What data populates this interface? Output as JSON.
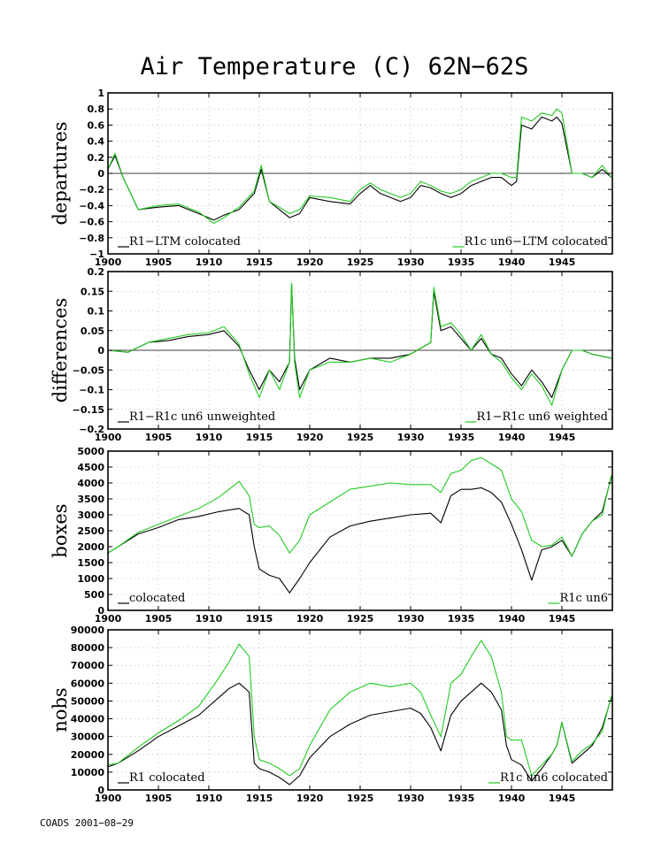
{
  "title": "Air Temperature (C) 62N−62S",
  "footer": "COADS 2001−08−29",
  "colors": {
    "series1": "#000000",
    "series2": "#22cc22",
    "grid": "#9a9a9a",
    "zero_line": "#000000"
  },
  "chart_data": [
    {
      "type": "line",
      "ylabel": "departures",
      "ylim": [
        -1,
        1
      ],
      "yticks": [
        -1,
        -0.8,
        -0.6,
        -0.4,
        -0.2,
        0,
        0.2,
        0.4,
        0.6,
        0.8,
        1
      ],
      "ytick_labels": [
        "−1",
        "−0.8",
        "−0.6",
        "−0.4",
        "−0.2",
        "0",
        "0.2",
        "0.4",
        "0.6",
        "0.8",
        "1"
      ],
      "xlim": [
        1900,
        1950
      ],
      "xticks": [
        1900,
        1905,
        1910,
        1915,
        1920,
        1925,
        1930,
        1935,
        1940,
        1945
      ],
      "zero_line": true,
      "grid": true,
      "x": [
        1900,
        1900.7,
        1901.5,
        1903,
        1905,
        1907,
        1909,
        1910.5,
        1911.5,
        1913,
        1914.5,
        1915.2,
        1916,
        1917,
        1918,
        1919,
        1920,
        1922,
        1924,
        1925,
        1926,
        1927,
        1928,
        1929,
        1930,
        1931,
        1932,
        1933,
        1934,
        1935,
        1936,
        1937,
        1938,
        1939,
        1940,
        1940.5,
        1941,
        1942,
        1943,
        1944,
        1944.5,
        1945,
        1946,
        1947,
        1948,
        1949,
        1949.9
      ],
      "series": [
        {
          "name": "R1−LTM colocated",
          "values": [
            0.05,
            0.22,
            -0.05,
            -0.45,
            -0.42,
            -0.4,
            -0.5,
            -0.58,
            -0.52,
            -0.45,
            -0.25,
            0.05,
            -0.35,
            -0.45,
            -0.55,
            -0.5,
            -0.3,
            -0.35,
            -0.38,
            -0.25,
            -0.15,
            -0.25,
            -0.3,
            -0.35,
            -0.3,
            -0.15,
            -0.18,
            -0.25,
            -0.3,
            -0.25,
            -0.15,
            -0.1,
            -0.05,
            -0.05,
            -0.15,
            -0.1,
            0.6,
            0.55,
            0.7,
            0.65,
            0.7,
            0.62,
            0,
            0,
            -0.05,
            0.05,
            -0.05
          ]
        },
        {
          "name": "R1c un6−LTM colocated",
          "values": [
            0.05,
            0.25,
            -0.05,
            -0.45,
            -0.4,
            -0.38,
            -0.48,
            -0.62,
            -0.55,
            -0.42,
            -0.22,
            0.1,
            -0.35,
            -0.42,
            -0.5,
            -0.45,
            -0.28,
            -0.3,
            -0.35,
            -0.2,
            -0.12,
            -0.2,
            -0.25,
            -0.3,
            -0.25,
            -0.1,
            -0.15,
            -0.22,
            -0.25,
            -0.2,
            -0.1,
            -0.05,
            0,
            0,
            -0.05,
            -0.05,
            0.7,
            0.65,
            0.75,
            0.72,
            0.8,
            0.75,
            0,
            0,
            -0.05,
            0.1,
            -0.05
          ]
        }
      ],
      "legend": [
        "R1−LTM colocated",
        "R1c un6−LTM colocated"
      ]
    },
    {
      "type": "line",
      "ylabel": "differences",
      "ylim": [
        -0.2,
        0.2
      ],
      "yticks": [
        -0.2,
        -0.15,
        -0.1,
        -0.05,
        0,
        0.05,
        0.1,
        0.15,
        0.2
      ],
      "ytick_labels": [
        "−0.2",
        "−0.15",
        "−0.1",
        "−0.05",
        "0",
        "0.05",
        "0.1",
        "0.15",
        "0.2"
      ],
      "xlim": [
        1900,
        1950
      ],
      "xticks": [
        1900,
        1905,
        1910,
        1915,
        1920,
        1925,
        1930,
        1935,
        1940,
        1945
      ],
      "zero_line": true,
      "grid": true,
      "x": [
        1900,
        1902,
        1904,
        1906,
        1908,
        1910,
        1911.5,
        1913,
        1914,
        1915,
        1916,
        1917,
        1918,
        1918.2,
        1918.5,
        1919,
        1920,
        1922,
        1924,
        1926,
        1928,
        1930,
        1932,
        1932.3,
        1933,
        1934,
        1935,
        1936,
        1937,
        1938,
        1939,
        1940,
        1941,
        1942,
        1943,
        1944,
        1945,
        1946,
        1947,
        1948,
        1949.9
      ],
      "series": [
        {
          "name": "R1−R1c un6 unweighted",
          "values": [
            0,
            -0.005,
            0.02,
            0.025,
            0.035,
            0.04,
            0.05,
            0.01,
            -0.05,
            -0.1,
            -0.05,
            -0.08,
            -0.03,
            0.17,
            -0.02,
            -0.1,
            -0.05,
            -0.02,
            -0.03,
            -0.02,
            -0.02,
            -0.01,
            0.02,
            0.15,
            0.05,
            0.06,
            0.03,
            0,
            0.03,
            -0.01,
            -0.02,
            -0.06,
            -0.09,
            -0.05,
            -0.08,
            -0.12,
            -0.05,
            0,
            0,
            -0.01,
            -0.02
          ]
        },
        {
          "name": "R1−R1c un6 weighted",
          "values": [
            0,
            -0.005,
            0.02,
            0.03,
            0.04,
            0.045,
            0.06,
            0.015,
            -0.06,
            -0.12,
            -0.05,
            -0.1,
            -0.03,
            0.17,
            -0.03,
            -0.12,
            -0.05,
            -0.03,
            -0.03,
            -0.02,
            -0.03,
            -0.01,
            0.02,
            0.16,
            0.06,
            0.07,
            0.04,
            0,
            0.04,
            -0.01,
            -0.03,
            -0.07,
            -0.1,
            -0.06,
            -0.09,
            -0.14,
            -0.05,
            0,
            0,
            -0.01,
            -0.02
          ]
        }
      ],
      "legend": [
        "R1−R1c un6 unweighted",
        "R1−R1c un6 weighted"
      ]
    },
    {
      "type": "line",
      "ylabel": "boxes",
      "ylim": [
        0,
        5000
      ],
      "yticks": [
        0,
        500,
        1000,
        1500,
        2000,
        2500,
        3000,
        3500,
        4000,
        4500,
        5000
      ],
      "ytick_labels": [
        "0",
        "500",
        "1000",
        "1500",
        "2000",
        "2500",
        "3000",
        "3500",
        "4000",
        "4500",
        "5000"
      ],
      "xlim": [
        1900,
        1950
      ],
      "xticks": [
        1900,
        1905,
        1910,
        1915,
        1920,
        1925,
        1930,
        1935,
        1940,
        1945
      ],
      "zero_line": false,
      "grid": true,
      "x": [
        1900,
        1901,
        1903,
        1905,
        1907,
        1909,
        1911,
        1913,
        1914,
        1914.5,
        1915,
        1916,
        1917,
        1918,
        1919,
        1920,
        1922,
        1924,
        1926,
        1928,
        1930,
        1932,
        1933,
        1934,
        1935,
        1936,
        1937,
        1938,
        1939,
        1940,
        1941,
        1942,
        1943,
        1944,
        1945,
        1946,
        1947,
        1948,
        1949,
        1949.9
      ],
      "series": [
        {
          "name": "colocated",
          "values": [
            1800,
            2000,
            2400,
            2600,
            2850,
            2950,
            3100,
            3200,
            3000,
            2000,
            1300,
            1100,
            1000,
            550,
            1000,
            1500,
            2300,
            2650,
            2800,
            2900,
            3000,
            3050,
            2750,
            3600,
            3800,
            3800,
            3850,
            3700,
            3400,
            2700,
            1900,
            950,
            1900,
            2000,
            2200,
            1700,
            2400,
            2800,
            3100,
            4200
          ]
        },
        {
          "name": "R1c un6",
          "values": [
            1800,
            2000,
            2450,
            2700,
            2950,
            3200,
            3550,
            4050,
            3600,
            2700,
            2600,
            2650,
            2350,
            1800,
            2200,
            3000,
            3400,
            3800,
            3900,
            4000,
            3950,
            3950,
            3700,
            4300,
            4400,
            4700,
            4800,
            4600,
            4400,
            3500,
            3100,
            2200,
            2000,
            2050,
            2300,
            1700,
            2400,
            2800,
            3000,
            4250
          ]
        }
      ],
      "legend": [
        "colocated",
        "R1c un6"
      ]
    },
    {
      "type": "line",
      "ylabel": "nobs",
      "ylim": [
        0,
        90000
      ],
      "yticks": [
        0,
        10000,
        20000,
        30000,
        40000,
        50000,
        60000,
        70000,
        80000,
        90000
      ],
      "ytick_labels": [
        "0",
        "10000",
        "20000",
        "30000",
        "40000",
        "50000",
        "60000",
        "70000",
        "80000",
        "90000"
      ],
      "xlim": [
        1900,
        1950
      ],
      "xticks": [
        1900,
        1905,
        1910,
        1915,
        1920,
        1925,
        1930,
        1935,
        1940,
        1945
      ],
      "zero_line": false,
      "grid": true,
      "x": [
        1900,
        1901,
        1903,
        1905,
        1907,
        1909,
        1911,
        1912,
        1913,
        1914,
        1914.5,
        1915,
        1916,
        1917,
        1918,
        1919,
        1920,
        1922,
        1924,
        1926,
        1928,
        1930,
        1931,
        1932,
        1933,
        1934,
        1935,
        1936,
        1937,
        1938,
        1939,
        1939.5,
        1940,
        1941,
        1942,
        1943,
        1944,
        1944.5,
        1945,
        1946,
        1947,
        1948,
        1949,
        1949.9
      ],
      "series": [
        {
          "name": "R1 colocated",
          "values": [
            13000,
            15000,
            22000,
            30000,
            36000,
            42000,
            52000,
            57000,
            60000,
            55000,
            15000,
            12000,
            10000,
            7000,
            3000,
            8000,
            18000,
            30000,
            37000,
            42000,
            44000,
            46000,
            43000,
            35000,
            22000,
            42000,
            50000,
            55000,
            60000,
            55000,
            45000,
            25000,
            17000,
            14000,
            5000,
            12000,
            20000,
            25000,
            38000,
            15000,
            20000,
            25000,
            35000,
            52000
          ]
        },
        {
          "name": "R1c un6 colocated",
          "values": [
            14000,
            15000,
            24000,
            32000,
            39000,
            47000,
            63000,
            72000,
            82000,
            75000,
            30000,
            17000,
            15000,
            12000,
            8000,
            12000,
            25000,
            45000,
            55000,
            60000,
            58000,
            60000,
            55000,
            42000,
            30000,
            60000,
            65000,
            75000,
            84000,
            75000,
            55000,
            30000,
            28000,
            28000,
            8000,
            14000,
            20000,
            25000,
            38000,
            16000,
            22000,
            26000,
            33000,
            53000
          ]
        }
      ],
      "legend": [
        "R1 colocated",
        "R1c un6 colocated"
      ]
    }
  ]
}
